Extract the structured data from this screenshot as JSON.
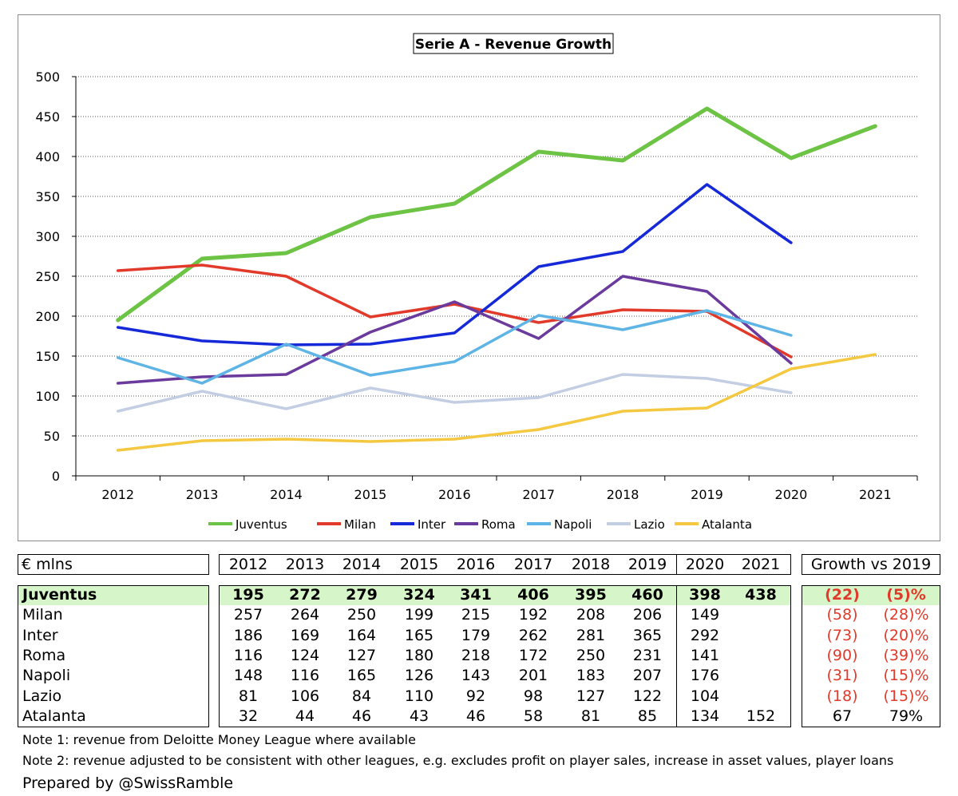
{
  "chart_data": {
    "type": "line",
    "title": "Serie A - Revenue Growth",
    "categories": [
      "2012",
      "2013",
      "2014",
      "2015",
      "2016",
      "2017",
      "2018",
      "2019",
      "2020",
      "2021"
    ],
    "ylim": [
      0,
      500
    ],
    "yticks": [
      0,
      50,
      100,
      150,
      200,
      250,
      300,
      350,
      400,
      450,
      500
    ],
    "grid": "horizontal dotted",
    "legend": "bottom",
    "series": [
      {
        "name": "Juventus",
        "color": "#6cc344",
        "width": 5,
        "values": [
          195,
          272,
          279,
          324,
          341,
          406,
          395,
          460,
          398,
          438
        ]
      },
      {
        "name": "Milan",
        "color": "#e23a2a",
        "width": 3.5,
        "values": [
          257,
          264,
          250,
          199,
          215,
          192,
          208,
          206,
          149,
          null
        ]
      },
      {
        "name": "Inter",
        "color": "#1629d8",
        "width": 3.5,
        "values": [
          186,
          169,
          164,
          165,
          179,
          262,
          281,
          365,
          292,
          null
        ]
      },
      {
        "name": "Roma",
        "color": "#6a3a9c",
        "width": 3.5,
        "values": [
          116,
          124,
          127,
          180,
          218,
          172,
          250,
          231,
          141,
          null
        ]
      },
      {
        "name": "Napoli",
        "color": "#5fb4e6",
        "width": 3.5,
        "values": [
          148,
          116,
          165,
          126,
          143,
          201,
          183,
          207,
          176,
          null
        ]
      },
      {
        "name": "Lazio",
        "color": "#c3cee3",
        "width": 3.5,
        "values": [
          81,
          106,
          84,
          110,
          92,
          98,
          127,
          122,
          104,
          null
        ]
      },
      {
        "name": "Atalanta",
        "color": "#f5c842",
        "width": 3.5,
        "values": [
          32,
          44,
          46,
          43,
          46,
          58,
          81,
          85,
          134,
          152
        ]
      }
    ]
  },
  "table": {
    "unit_label": "€ mlns",
    "years": [
      "2012",
      "2013",
      "2014",
      "2015",
      "2016",
      "2017",
      "2018",
      "2019",
      "2020",
      "2021"
    ],
    "growth_header": "Growth vs 2019",
    "rows": [
      {
        "name": "Juventus",
        "values": [
          "195",
          "272",
          "279",
          "324",
          "341",
          "406",
          "395",
          "460",
          "398",
          "438"
        ],
        "growth": "(22)",
        "growth_pct": "(5)%"
      },
      {
        "name": "Milan",
        "values": [
          "257",
          "264",
          "250",
          "199",
          "215",
          "192",
          "208",
          "206",
          "149",
          ""
        ],
        "growth": "(58)",
        "growth_pct": "(28)%"
      },
      {
        "name": "Inter",
        "values": [
          "186",
          "169",
          "164",
          "165",
          "179",
          "262",
          "281",
          "365",
          "292",
          ""
        ],
        "growth": "(73)",
        "growth_pct": "(20)%"
      },
      {
        "name": "Roma",
        "values": [
          "116",
          "124",
          "127",
          "180",
          "218",
          "172",
          "250",
          "231",
          "141",
          ""
        ],
        "growth": "(90)",
        "growth_pct": "(39)%"
      },
      {
        "name": "Napoli",
        "values": [
          "148",
          "116",
          "165",
          "126",
          "143",
          "201",
          "183",
          "207",
          "176",
          ""
        ],
        "growth": "(31)",
        "growth_pct": "(15)%"
      },
      {
        "name": "Lazio",
        "values": [
          "81",
          "106",
          "84",
          "110",
          "92",
          "98",
          "127",
          "122",
          "104",
          ""
        ],
        "growth": "(18)",
        "growth_pct": "(15)%"
      },
      {
        "name": "Atalanta",
        "values": [
          "32",
          "44",
          "46",
          "43",
          "46",
          "58",
          "81",
          "85",
          "134",
          "152"
        ],
        "growth": "67",
        "growth_pct": "79%"
      }
    ]
  },
  "notes": {
    "note1": "Note 1: revenue from Deloitte Money League where available",
    "note2": "Note 2: revenue adjusted to be consistent with other leagues, e.g. excludes profit on player sales, increase in asset values, player loans"
  },
  "credit": "Prepared by @SwissRamble"
}
